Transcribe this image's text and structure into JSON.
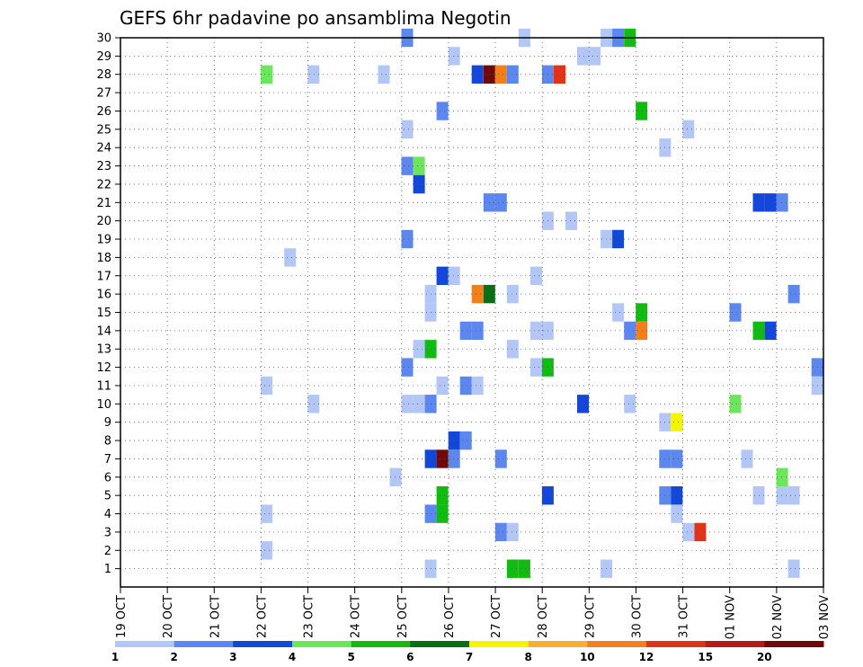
{
  "chart_data": {
    "type": "heatmap",
    "title": "GEFS 6hr padavine po ansamblima Negotin",
    "x_labels": [
      "19 OCT",
      "20 OCT",
      "21 OCT",
      "22 OCT",
      "23 OCT",
      "24 OCT",
      "25 OCT",
      "26 OCT",
      "27 OCT",
      "28 OCT",
      "29 OCT",
      "30 OCT",
      "31 OCT",
      "01 NOV",
      "02 NOV",
      "03 NOV"
    ],
    "y_labels": [
      "1",
      "2",
      "3",
      "4",
      "5",
      "6",
      "7",
      "8",
      "9",
      "10",
      "11",
      "12",
      "13",
      "14",
      "15",
      "16",
      "17",
      "18",
      "19",
      "20",
      "21",
      "22",
      "23",
      "24",
      "25",
      "26",
      "27",
      "28",
      "29",
      "30"
    ],
    "x_range": [
      0,
      15
    ],
    "y_range": [
      0,
      30
    ],
    "grid": true,
    "colorbar": {
      "labels": [
        "1",
        "2",
        "3",
        "4",
        "5",
        "6",
        "7",
        "8",
        "10",
        "12",
        "15",
        "20"
      ],
      "colors": [
        "#b3c7f7",
        "#5b87ee",
        "#1347da",
        "#6ce65a",
        "#11bb11",
        "#0a6e14",
        "#f5f500",
        "#f8b030",
        "#f47f18",
        "#e0341a",
        "#b81a1a",
        "#6e0a0a"
      ]
    },
    "cells": [
      {
        "x": 6.12,
        "y": 30,
        "v": 2
      },
      {
        "x": 8.62,
        "y": 30,
        "v": 1
      },
      {
        "x": 10.37,
        "y": 30,
        "v": 1
      },
      {
        "x": 10.62,
        "y": 30,
        "v": 2
      },
      {
        "x": 10.87,
        "y": 30,
        "v": 5
      },
      {
        "x": 7.12,
        "y": 29,
        "v": 1
      },
      {
        "x": 9.87,
        "y": 29,
        "v": 1
      },
      {
        "x": 10.12,
        "y": 29,
        "v": 1
      },
      {
        "x": 3.12,
        "y": 28,
        "v": 4
      },
      {
        "x": 4.12,
        "y": 28,
        "v": 1
      },
      {
        "x": 5.62,
        "y": 28,
        "v": 1
      },
      {
        "x": 7.62,
        "y": 28,
        "v": 3
      },
      {
        "x": 7.87,
        "y": 28,
        "v": 12
      },
      {
        "x": 8.12,
        "y": 28,
        "v": 9
      },
      {
        "x": 8.37,
        "y": 28,
        "v": 2
      },
      {
        "x": 9.12,
        "y": 28,
        "v": 2
      },
      {
        "x": 9.37,
        "y": 28,
        "v": 10
      },
      {
        "x": 6.87,
        "y": 26,
        "v": 2
      },
      {
        "x": 11.12,
        "y": 26,
        "v": 5
      },
      {
        "x": 6.12,
        "y": 25,
        "v": 1
      },
      {
        "x": 12.12,
        "y": 25,
        "v": 1
      },
      {
        "x": 11.62,
        "y": 24,
        "v": 1
      },
      {
        "x": 6.12,
        "y": 23,
        "v": 2
      },
      {
        "x": 6.37,
        "y": 23,
        "v": 4
      },
      {
        "x": 6.37,
        "y": 22,
        "v": 3
      },
      {
        "x": 7.87,
        "y": 21,
        "v": 2
      },
      {
        "x": 8.12,
        "y": 21,
        "v": 2
      },
      {
        "x": 13.62,
        "y": 21,
        "v": 3
      },
      {
        "x": 13.87,
        "y": 21,
        "v": 3
      },
      {
        "x": 14.12,
        "y": 21,
        "v": 2
      },
      {
        "x": 9.12,
        "y": 20,
        "v": 1
      },
      {
        "x": 9.62,
        "y": 20,
        "v": 1
      },
      {
        "x": 6.12,
        "y": 19,
        "v": 2
      },
      {
        "x": 10.37,
        "y": 19,
        "v": 1
      },
      {
        "x": 10.62,
        "y": 19,
        "v": 3
      },
      {
        "x": 3.62,
        "y": 18,
        "v": 1
      },
      {
        "x": 6.87,
        "y": 17,
        "v": 3
      },
      {
        "x": 7.12,
        "y": 17,
        "v": 1
      },
      {
        "x": 8.87,
        "y": 17,
        "v": 1
      },
      {
        "x": 7.62,
        "y": 16,
        "v": 9
      },
      {
        "x": 7.87,
        "y": 16,
        "v": 6
      },
      {
        "x": 8.37,
        "y": 16,
        "v": 1
      },
      {
        "x": 6.62,
        "y": 16,
        "v": 1
      },
      {
        "x": 14.37,
        "y": 16,
        "v": 2
      },
      {
        "x": 6.62,
        "y": 15,
        "v": 1
      },
      {
        "x": 10.62,
        "y": 15,
        "v": 1
      },
      {
        "x": 11.12,
        "y": 15,
        "v": 5
      },
      {
        "x": 13.12,
        "y": 15,
        "v": 2
      },
      {
        "x": 7.37,
        "y": 14,
        "v": 2
      },
      {
        "x": 7.62,
        "y": 14,
        "v": 2
      },
      {
        "x": 8.87,
        "y": 14,
        "v": 1
      },
      {
        "x": 9.12,
        "y": 14,
        "v": 1
      },
      {
        "x": 11.12,
        "y": 14,
        "v": 9
      },
      {
        "x": 10.87,
        "y": 14,
        "v": 2
      },
      {
        "x": 13.62,
        "y": 14,
        "v": 5
      },
      {
        "x": 13.87,
        "y": 14,
        "v": 3
      },
      {
        "x": 6.37,
        "y": 13,
        "v": 1
      },
      {
        "x": 6.62,
        "y": 13,
        "v": 5
      },
      {
        "x": 8.37,
        "y": 13,
        "v": 1
      },
      {
        "x": 6.12,
        "y": 12,
        "v": 2
      },
      {
        "x": 8.87,
        "y": 12,
        "v": 1
      },
      {
        "x": 9.12,
        "y": 12,
        "v": 5
      },
      {
        "x": 14.87,
        "y": 12,
        "v": 2
      },
      {
        "x": 3.12,
        "y": 11,
        "v": 1
      },
      {
        "x": 6.87,
        "y": 11,
        "v": 1
      },
      {
        "x": 7.37,
        "y": 11,
        "v": 2
      },
      {
        "x": 7.62,
        "y": 11,
        "v": 1
      },
      {
        "x": 14.87,
        "y": 11,
        "v": 1
      },
      {
        "x": 4.12,
        "y": 10,
        "v": 1
      },
      {
        "x": 6.12,
        "y": 10,
        "v": 1
      },
      {
        "x": 6.37,
        "y": 10,
        "v": 1
      },
      {
        "x": 6.62,
        "y": 10,
        "v": 2
      },
      {
        "x": 9.87,
        "y": 10,
        "v": 3
      },
      {
        "x": 10.87,
        "y": 10,
        "v": 1
      },
      {
        "x": 13.12,
        "y": 10,
        "v": 4
      },
      {
        "x": 11.62,
        "y": 9,
        "v": 1
      },
      {
        "x": 11.87,
        "y": 9,
        "v": 7
      },
      {
        "x": 7.12,
        "y": 8,
        "v": 3
      },
      {
        "x": 7.37,
        "y": 8,
        "v": 2
      },
      {
        "x": 6.62,
        "y": 7,
        "v": 3
      },
      {
        "x": 6.87,
        "y": 7,
        "v": 12
      },
      {
        "x": 7.12,
        "y": 7,
        "v": 2
      },
      {
        "x": 8.12,
        "y": 7,
        "v": 2
      },
      {
        "x": 11.62,
        "y": 7,
        "v": 2
      },
      {
        "x": 11.87,
        "y": 7,
        "v": 2
      },
      {
        "x": 13.37,
        "y": 7,
        "v": 1
      },
      {
        "x": 5.87,
        "y": 6,
        "v": 1
      },
      {
        "x": 14.12,
        "y": 6,
        "v": 4
      },
      {
        "x": 6.87,
        "y": 5,
        "v": 5
      },
      {
        "x": 9.12,
        "y": 5,
        "v": 3
      },
      {
        "x": 11.62,
        "y": 5,
        "v": 2
      },
      {
        "x": 11.87,
        "y": 5,
        "v": 3
      },
      {
        "x": 13.62,
        "y": 5,
        "v": 1
      },
      {
        "x": 14.12,
        "y": 5,
        "v": 1
      },
      {
        "x": 14.37,
        "y": 5,
        "v": 1
      },
      {
        "x": 3.12,
        "y": 4,
        "v": 1
      },
      {
        "x": 6.62,
        "y": 4,
        "v": 2
      },
      {
        "x": 6.87,
        "y": 4,
        "v": 5
      },
      {
        "x": 11.87,
        "y": 4,
        "v": 1
      },
      {
        "x": 8.12,
        "y": 3,
        "v": 2
      },
      {
        "x": 8.37,
        "y": 3,
        "v": 1
      },
      {
        "x": 12.12,
        "y": 3,
        "v": 1
      },
      {
        "x": 12.37,
        "y": 3,
        "v": 10
      },
      {
        "x": 3.12,
        "y": 2,
        "v": 1
      },
      {
        "x": 6.62,
        "y": 1,
        "v": 1
      },
      {
        "x": 8.37,
        "y": 1,
        "v": 5
      },
      {
        "x": 8.62,
        "y": 1,
        "v": 5
      },
      {
        "x": 10.37,
        "y": 1,
        "v": 1
      },
      {
        "x": 14.37,
        "y": 1,
        "v": 1
      }
    ]
  }
}
